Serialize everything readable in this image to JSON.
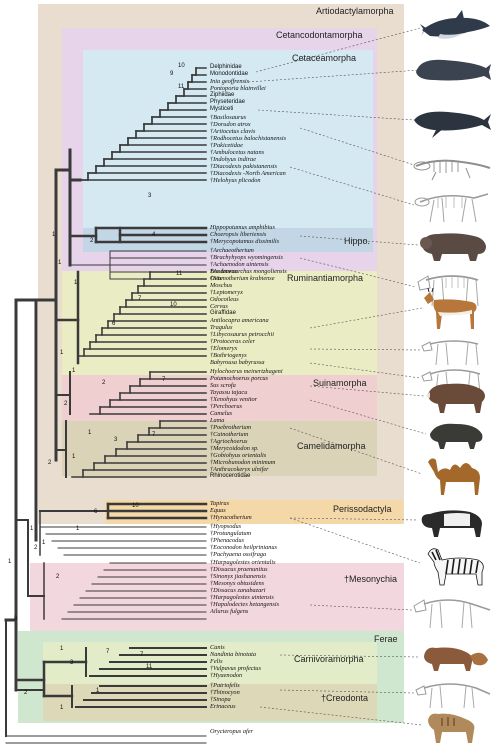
{
  "clades": [
    {
      "label": "Artiodactylamorpha",
      "color": "#e9ddd0"
    },
    {
      "label": "Cetancodontamorpha",
      "color": "#e7d3ea"
    },
    {
      "label": "Cetaceamorpha",
      "color": "#d4e9f2"
    },
    {
      "label": "Hippo.",
      "color": "#c3d6e6"
    },
    {
      "label": "Ruminantiamorpha",
      "color": "#eaedc4"
    },
    {
      "label": "Suinamorpha",
      "color": "#efcfcf"
    },
    {
      "label": "Camelidamorpha",
      "color": "#dad3b8"
    },
    {
      "label": "Perissodactyla",
      "color": "#f5d8a8"
    },
    {
      "label": "†Mesonychia",
      "color": "#f2d7de"
    },
    {
      "label": "Ferae",
      "color": "#cfe6cf"
    },
    {
      "label": "Carnivoramorpha",
      "color": "#e3ecc8"
    },
    {
      "label": "†Creodonta",
      "color": "#dcd8b8"
    }
  ],
  "taxa": [
    "Delphinidae",
    "Monodontidae",
    "Inia geoffrensis",
    "Pontoporia blainvillei",
    "Ziphiidae",
    "Physeteridae",
    "Mysticeti",
    "†Basilosaurus",
    "†Dorudon atrox",
    "†Artiocetus clavis",
    "†Rodhocetus balochistanensis",
    "†Pakicetidae",
    "†Ambulocetus natans",
    "†Indohyus indirae",
    "†Diacodexis pakistanensis",
    "†Diacodexis -North American",
    "†Helohyus plicodon",
    "Hippopotamus amphibius",
    "Choeropsis liberiensis",
    "†Merycopotamus dissimilis",
    "†Archaeotherium",
    "†Brachyhyops wyomingensis",
    "†Achaenodon uintensis",
    "†Andrewsarchus mongoliensis",
    "†Siamotherium krabiense",
    "Bos taurus",
    "Ovis",
    "Moschus",
    "†Leptomeryx",
    "Odocoileus",
    "Cervus",
    "Giraffidae",
    "Antilocapra americana",
    "Tragulus",
    "†Libycosaurus petrocchii",
    "†Protoceras celer",
    "†Elomeryx",
    "†Bothriogenys",
    "Babyrousa babyrussa",
    "Hylochoerus meinertzhageni",
    "Potamochoerus porcus",
    "Sus scrofa",
    "Tayassu tajacu",
    "†Xenohyus venitor",
    "†Perchoerus",
    "Camelus",
    "Lama",
    "†Poebrotherium",
    "†Cainotherium",
    "†Agriochoerus",
    "†Merycoidodon sp.",
    "†Gobiohyus orientalis",
    "†Microbunodon minimum",
    "†Anthracokeryx ulnifer",
    "Rhinocerotidae",
    "Tapirus",
    "Equus",
    "†Hyracotherium",
    "†Hyopsodus",
    "†Protungulatum",
    "†Phenacodus",
    "†Eoconodon heilprinianus",
    "†Pachyaena ossifraga",
    "†Harpagolestes orientalis",
    "†Dissacus praenuntius",
    "†Sinonyx jiashanensis",
    "†Mesonyx obtusidens",
    "†Dissacus zanabazari",
    "†Harpagolestes uintensis",
    "†Hapalodectes hetangensis",
    "Ailurus fulgens",
    "Canis",
    "Nandinia binotata",
    "Felis",
    "†Vulpavus profectus",
    "†Hyaenodon",
    "†Patriofelis",
    "†Thinocyon",
    "†Sinopa",
    "Erinaceus",
    "Orycteropus afer"
  ],
  "node_labels": [
    "10",
    "9",
    "11",
    "3",
    "4",
    "2",
    "1",
    "1",
    "1",
    "11",
    "10",
    "6",
    "7",
    "1",
    "1",
    "7",
    "2",
    "2",
    "3",
    "7",
    "1",
    "1",
    "2",
    "10",
    "6",
    "1",
    "1",
    "2",
    "2",
    "1",
    "7",
    "11",
    "3",
    "7",
    "1",
    "1",
    "2",
    "8",
    "1",
    "1"
  ],
  "animals": [
    {
      "name": "dolphin-icon",
      "color": "#2f3b4a"
    },
    {
      "name": "sperm-whale-icon",
      "color": "#3c4350"
    },
    {
      "name": "humpback-whale-icon",
      "color": "#2c3440"
    },
    {
      "name": "archaeocete-skeleton-icon",
      "color": "#9a9a9a"
    },
    {
      "name": "pakicetid-skeleton-icon",
      "color": "#a4a4a4"
    },
    {
      "name": "hippo-icon",
      "color": "#5a4a44"
    },
    {
      "name": "entelodont-skeleton-icon",
      "color": "#a8a8a8"
    },
    {
      "name": "pronghorn-icon",
      "color": "#b7773a"
    },
    {
      "name": "protoceras-skeleton-icon",
      "color": "#a8a8a8"
    },
    {
      "name": "oreodont-skeleton-icon",
      "color": "#a8a8a8"
    },
    {
      "name": "boar-icon",
      "color": "#6a4a38"
    },
    {
      "name": "peccary-icon",
      "color": "#3a3a36"
    },
    {
      "name": "camel-icon",
      "color": "#a4682a"
    },
    {
      "name": "tapir-icon",
      "color": "#2a2a2a"
    },
    {
      "name": "zebra-icon",
      "color": "#1a1a1a"
    },
    {
      "name": "mesonychid-skeleton-icon",
      "color": "#a8a8a8"
    },
    {
      "name": "red-panda-icon",
      "color": "#8a5a3a"
    },
    {
      "name": "creodont-skeleton-icon",
      "color": "#a8a8a8"
    },
    {
      "name": "hyena-icon",
      "color": "#b08a5a"
    }
  ]
}
